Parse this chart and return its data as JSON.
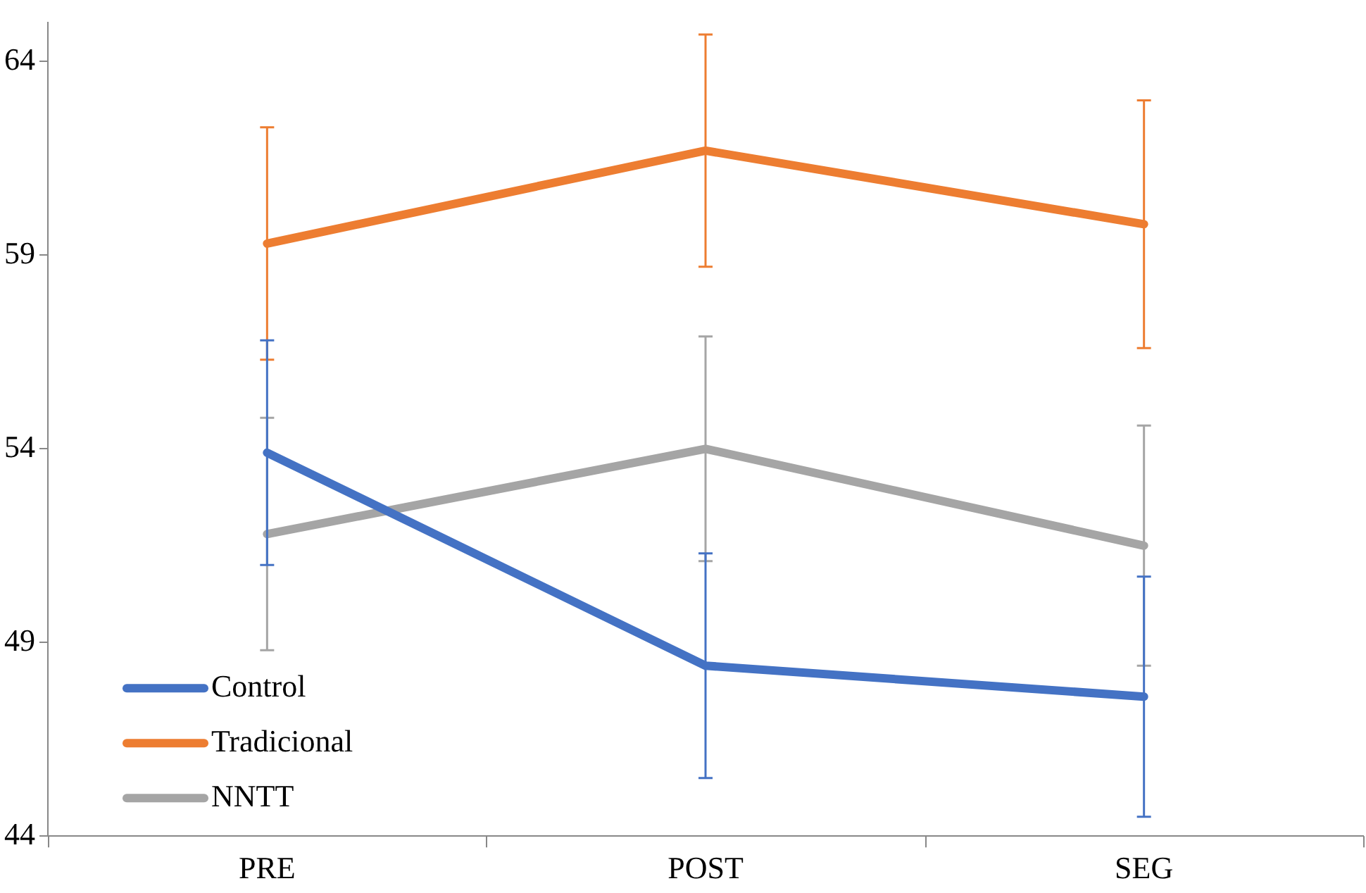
{
  "chart_data": {
    "type": "line",
    "categories": [
      "PRE",
      "POST",
      "SEG"
    ],
    "series": [
      {
        "name": "Control",
        "color": "#4472c4",
        "values": [
          53.9,
          48.4,
          47.6
        ],
        "errors": [
          2.9,
          2.9,
          3.1
        ]
      },
      {
        "name": "Tradicional",
        "color": "#ed7d31",
        "values": [
          59.3,
          61.7,
          59.8
        ],
        "errors": [
          3.0,
          3.0,
          3.2
        ]
      },
      {
        "name": "NNTT",
        "color": "#a5a5a5",
        "values": [
          51.8,
          54.0,
          51.5
        ],
        "errors": [
          3.0,
          2.9,
          3.1
        ]
      }
    ],
    "ylim": [
      44,
      65
    ],
    "yticks": [
      44,
      49,
      54,
      59,
      64
    ],
    "grid": false,
    "legend": "bottom left",
    "marker": "none",
    "line_style": "solid"
  }
}
